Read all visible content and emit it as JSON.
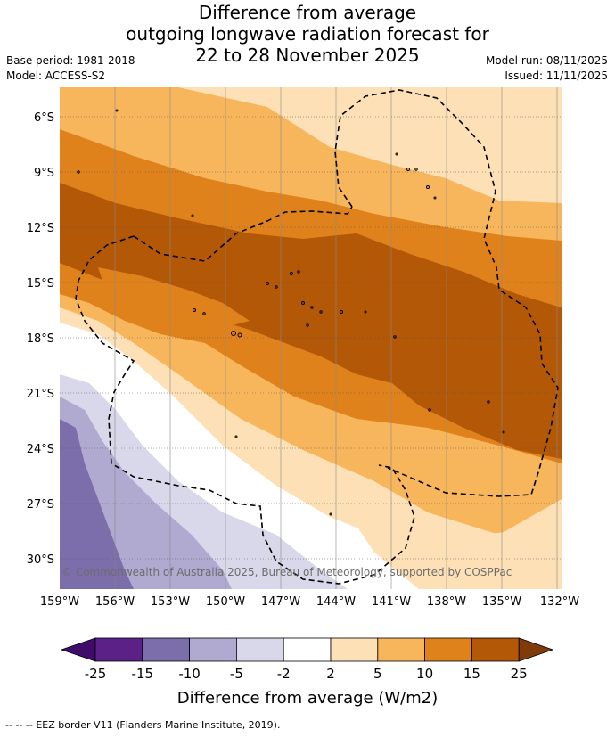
{
  "title_lines": [
    "Difference from average",
    "outgoing longwave radiation forecast for",
    "22 to 28 November 2025"
  ],
  "base_period": "Base period: 1981-2018",
  "model": "Model: ACCESS-S2",
  "model_run": "Model run: 08/11/2025",
  "issued": "Issued: 11/11/2025",
  "lat_labels": [
    "6°S",
    "9°S",
    "12°S",
    "15°S",
    "18°S",
    "21°S",
    "24°S",
    "27°S",
    "30°S"
  ],
  "lon_labels": [
    "159°W",
    "156°W",
    "153°W",
    "150°W",
    "147°W",
    "144°W",
    "141°W",
    "138°W",
    "135°W",
    "132°W"
  ],
  "copyright": "© Commonwealth of Australia 2025, Bureau of Meteorology, supported by COSPPac",
  "colorbar": {
    "ticks": [
      "-25",
      "-15",
      "-10",
      "-5",
      "-2",
      "2",
      "5",
      "10",
      "15",
      "25"
    ],
    "title": "Difference from average (W/m2)",
    "colors": [
      "#3f0c6b",
      "#5b2187",
      "#7c6dab",
      "#b0a9d0",
      "#d9d8ea",
      "#ffffff",
      "#fee0b6",
      "#f8b65c",
      "#e0821c",
      "#b35806",
      "#7f3b08"
    ]
  },
  "legend": {
    "line_style": "--  --  --",
    "text": "EEZ border V11 (Flanders Marine Institute, 2019)."
  }
}
